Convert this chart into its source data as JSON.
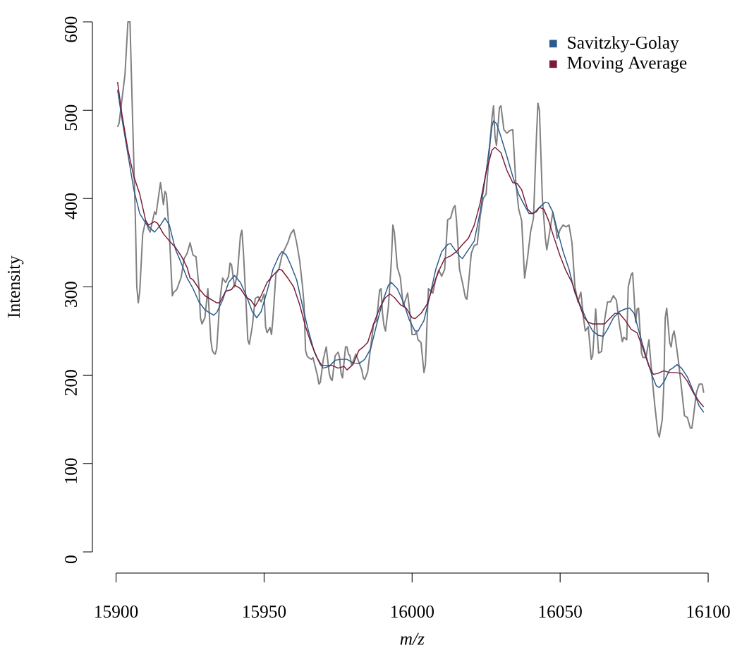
{
  "chart_data": {
    "type": "line",
    "xlabel": "m/z",
    "ylabel": "Intensity",
    "xlim": [
      15900,
      16100
    ],
    "ylim": [
      0,
      600
    ],
    "xticks": [
      15900,
      15950,
      16000,
      16050,
      16100
    ],
    "yticks": [
      0,
      100,
      200,
      300,
      400,
      500,
      600
    ],
    "legend": "top right",
    "series": [
      {
        "color": "#808080",
        "x": [
          15900.5,
          15901,
          15903,
          15904,
          15904.7,
          15905.5,
          15906.5,
          15907,
          15907.5,
          15908,
          15909,
          15910,
          15911,
          15911.5,
          15912,
          15913,
          15913.5,
          15915,
          15916,
          15916.5,
          15917,
          15918,
          15919,
          15919.5,
          15920.5,
          15922,
          15923,
          15924,
          15925,
          15926,
          15927,
          15928,
          15928.5,
          15929,
          15930,
          15931,
          15932,
          15932.5,
          15933,
          15933.5,
          15934,
          15935,
          15936,
          15937,
          15938,
          15938.5,
          15939,
          15940,
          15941,
          15942,
          15942.5,
          15943,
          15944,
          15944.5,
          15945,
          15946,
          15947,
          15948,
          15949,
          15950,
          15950.5,
          15951,
          15952,
          15952.5,
          15953,
          15954,
          15955,
          15956,
          15957,
          15958,
          15959,
          15960,
          15961,
          15962,
          15963,
          15963.5,
          15964,
          15964.5,
          15965,
          15966,
          15966.5,
          15968,
          15968.5,
          15969,
          15970,
          15971,
          15972,
          15972.5,
          15973,
          15974,
          15975,
          15975.5,
          15976,
          15976.5,
          15977.5,
          15978,
          15978.5,
          15979,
          15979.5,
          15980,
          15981,
          15982,
          15983,
          15983.5,
          15984,
          15985,
          15986,
          15987,
          15988,
          15989,
          15989.5,
          15990,
          15990.5,
          15991,
          15992,
          15993,
          15993.5,
          15994,
          15995,
          15996,
          15997,
          15998,
          15998.5,
          15999,
          15999.5,
          16000,
          16001,
          16001.5,
          16002,
          16003,
          16003.5,
          16004,
          16004.5,
          16005,
          16005.5,
          16007,
          16008,
          16009,
          16010,
          16011,
          16012,
          16013,
          16014,
          16014.5,
          16015,
          16016,
          16017,
          16018,
          16018.5,
          16019,
          16020,
          16021,
          16022,
          16023,
          16024,
          16025,
          16026,
          16027,
          16027.5,
          16028,
          16028.5,
          16029.5,
          16030,
          16031,
          16032,
          16033,
          16034,
          16035,
          16036,
          16037,
          16038,
          16039,
          16040,
          16041,
          16042,
          16042.5,
          16043,
          16044,
          16045,
          16045.5,
          16046.5,
          16047.5,
          16048.5,
          16049,
          16050,
          16051,
          16052,
          16053,
          16054,
          16055,
          16056,
          16057,
          16058,
          16058.5,
          16059.5,
          16060.5,
          16061,
          16062,
          16063,
          16064,
          16065,
          16066,
          16067,
          16068,
          16069,
          16070,
          16071,
          16071.5,
          16072.5,
          16073,
          16074,
          16074.5,
          16075.5,
          16076,
          16076.5,
          16077.5,
          16078,
          16079,
          16080,
          16080.5,
          16081,
          16082,
          16083,
          16083.5,
          16084.5,
          16085,
          16085.5,
          16086,
          16087,
          16087.5,
          16088,
          16088.5,
          16089,
          16090,
          16091,
          16092,
          16093,
          16094,
          16094.5,
          16095,
          16096,
          16097,
          16098,
          16098.5
        ],
        "values": [
          481,
          485,
          540,
          600,
          600,
          500,
          380,
          300,
          282,
          295,
          360,
          375,
          365,
          362,
          370,
          385,
          382,
          418,
          393,
          408,
          405,
          360,
          290,
          294,
          297,
          311,
          332,
          338,
          350,
          336,
          334,
          300,
          265,
          258,
          265,
          298,
          240,
          228,
          225,
          224,
          230,
          283,
          310,
          305,
          312,
          327,
          325,
          300,
          315,
          358,
          364,
          340,
          275,
          240,
          235,
          255,
          287,
          289,
          283,
          292,
          255,
          248,
          254,
          246,
          265,
          315,
          320,
          335,
          343,
          350,
          360,
          365,
          350,
          330,
          300,
          280,
          228,
          222,
          220,
          218,
          220,
          200,
          190,
          192,
          218,
          232,
          202,
          196,
          194,
          222,
          226,
          220,
          202,
          197,
          232,
          232,
          224,
          222,
          212,
          215,
          224,
          215,
          206,
          197,
          195,
          204,
          232,
          258,
          262,
          296,
          298,
          270,
          256,
          250,
          278,
          330,
          370,
          362,
          322,
          311,
          278,
          288,
          293,
          278,
          262,
          246,
          246,
          249,
          240,
          237,
          220,
          203,
          212,
          255,
          298,
          293,
          309,
          319,
          312,
          320,
          376,
          378,
          390,
          392,
          375,
          320,
          305,
          288,
          286,
          302,
          338,
          347,
          348,
          380,
          400,
          405,
          450,
          492,
          505,
          470,
          460,
          503,
          505,
          478,
          474,
          477,
          478,
          420,
          388,
          375,
          310,
          333,
          362,
          378,
          470,
          508,
          500,
          400,
          355,
          342,
          363,
          384,
          368,
          355,
          365,
          370,
          368,
          370,
          350,
          300,
          283,
          294,
          262,
          250,
          255,
          218,
          222,
          275,
          225,
          227,
          262,
          283,
          283,
          290,
          285,
          258,
          238,
          243,
          240,
          300,
          314,
          316,
          260,
          275,
          276,
          225,
          220,
          220,
          240,
          220,
          200,
          165,
          135,
          130,
          150,
          186,
          265,
          276,
          237,
          232,
          245,
          250,
          240,
          215,
          185,
          154,
          152,
          140,
          140,
          152,
          180,
          190,
          190,
          180
        ]
      },
      {
        "name": "Savitzky-Golay",
        "color": "#2b5a8c",
        "x": [
          15900.5,
          15902,
          15904,
          15906,
          15908,
          15910,
          15912,
          15913,
          15915,
          15916.5,
          15918,
          15920,
          15922,
          15924,
          15926,
          15928,
          15930,
          15932,
          15933,
          15934,
          15936,
          15938,
          15940,
          15942,
          15944,
          15946,
          15947.5,
          15949,
          15951,
          15953,
          15955,
          15956,
          15957.5,
          15959,
          15961,
          15963,
          15965,
          15967,
          15969,
          15970,
          15972,
          15974,
          15976,
          15978,
          15980,
          15982,
          15984,
          15986,
          15988,
          15990,
          15992,
          15993,
          15995,
          15997,
          15999,
          16001,
          16002,
          16004,
          16006,
          16008,
          16010,
          16012,
          16013,
          16014,
          16016,
          16017,
          16019,
          16021,
          16023,
          16025,
          16027,
          16027.5,
          16028.5,
          16030,
          16032,
          16034,
          16036,
          16038,
          16039.5,
          16041,
          16043,
          16045,
          16046,
          16047.5,
          16049,
          16051,
          16053,
          16055,
          16057,
          16059,
          16061,
          16063,
          16064.5,
          16066,
          16068,
          16070,
          16072,
          16073.5,
          16075,
          16077,
          16079,
          16081,
          16082.5,
          16083.5,
          16085,
          16087,
          16088,
          16089.5,
          16091,
          16093,
          16095,
          16097,
          16098.5
        ],
        "values": [
          523,
          490,
          450,
          410,
          383,
          372,
          365,
          362,
          370,
          378,
          370,
          343,
          327,
          310,
          298,
          283,
          274,
          270,
          268,
          271,
          285,
          305,
          313,
          305,
          290,
          272,
          265,
          272,
          295,
          320,
          335,
          340,
          336,
          325,
          308,
          278,
          250,
          226,
          212,
          208,
          210,
          217,
          218,
          218,
          214,
          213,
          218,
          230,
          257,
          283,
          302,
          305,
          298,
          283,
          263,
          250,
          250,
          262,
          290,
          320,
          340,
          348,
          349,
          344,
          335,
          332,
          342,
          352,
          385,
          430,
          482,
          488,
          485,
          470,
          448,
          425,
          405,
          392,
          383,
          383,
          390,
          396,
          395,
          385,
          365,
          340,
          320,
          293,
          278,
          262,
          250,
          245,
          244,
          252,
          265,
          272,
          275,
          276,
          270,
          245,
          222,
          200,
          188,
          186,
          192,
          206,
          208,
          212,
          208,
          198,
          182,
          165,
          158
        ]
      },
      {
        "name": "Moving Average",
        "color": "#7a1a36",
        "x": [
          15900.5,
          15902,
          15904,
          15906,
          15908,
          15909,
          15910,
          15911,
          15913,
          15914,
          15916,
          15918,
          15920,
          15922,
          15924,
          15925,
          15926,
          15928,
          15930,
          15932,
          15934,
          15935,
          15937,
          15939,
          15940,
          15942,
          15944,
          15945.5,
          15947,
          15949,
          15951,
          15953,
          15955,
          15956,
          15958,
          15960,
          15962,
          15964,
          15966,
          15968,
          15969.5,
          15971,
          15973,
          15975,
          15977,
          15978,
          15980,
          15982,
          15983.5,
          15985,
          15987,
          15989,
          15991,
          15992.5,
          15994,
          15996,
          15998,
          16000,
          16001,
          16003,
          16005,
          16007,
          16009,
          16011,
          16013,
          16015,
          16017,
          16019,
          16021,
          16023,
          16025,
          16027,
          16028,
          16030,
          16032,
          16034,
          16035.5,
          16037,
          16039,
          16040.5,
          16042,
          16043,
          16044.5,
          16046,
          16048,
          16050,
          16052,
          16054,
          16056,
          16058,
          16059.5,
          16061,
          16063,
          16065,
          16067,
          16068.5,
          16070,
          16072,
          16074,
          16076,
          16078,
          16080,
          16081.5,
          16083,
          16085,
          16087,
          16089,
          16091,
          16093,
          16095,
          16097,
          16098.5
        ],
        "values": [
          532,
          495,
          455,
          425,
          405,
          390,
          375,
          370,
          374,
          372,
          360,
          352,
          345,
          335,
          322,
          310,
          308,
          298,
          290,
          286,
          282,
          282,
          295,
          297,
          302,
          298,
          288,
          285,
          278,
          290,
          305,
          313,
          320,
          319,
          310,
          300,
          280,
          255,
          235,
          219,
          211,
          211,
          211,
          208,
          210,
          206,
          212,
          228,
          232,
          237,
          258,
          276,
          288,
          292,
          288,
          280,
          276,
          265,
          264,
          270,
          280,
          300,
          318,
          332,
          335,
          340,
          348,
          355,
          370,
          395,
          430,
          455,
          458,
          452,
          432,
          418,
          417,
          410,
          388,
          383,
          385,
          390,
          388,
          376,
          355,
          335,
          318,
          305,
          285,
          266,
          260,
          258,
          258,
          258,
          265,
          270,
          270,
          262,
          252,
          248,
          230,
          210,
          201,
          202,
          205,
          203,
          203,
          202,
          193,
          180,
          170,
          164
        ]
      }
    ]
  }
}
